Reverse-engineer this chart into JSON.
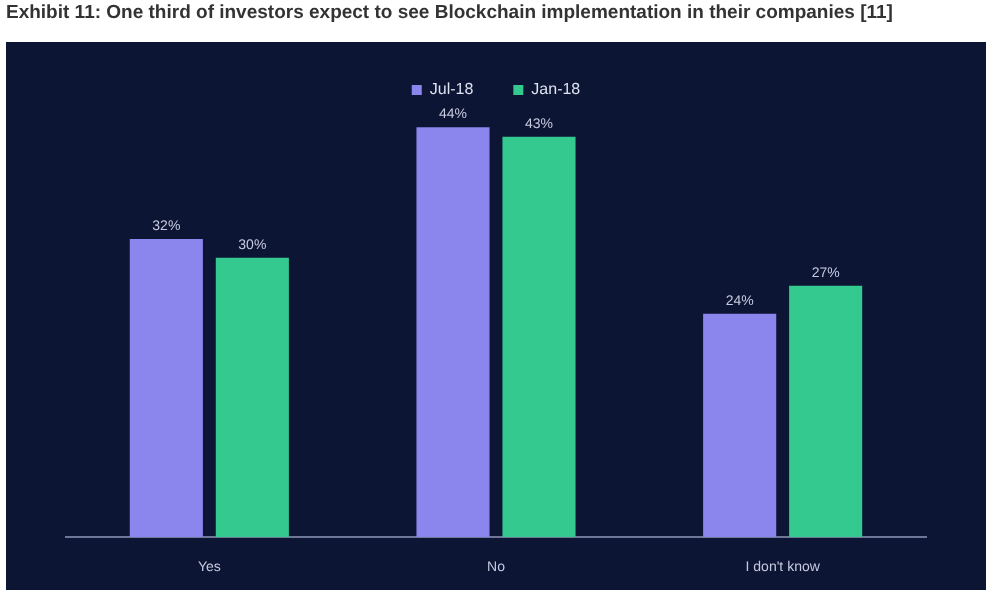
{
  "chart_data": {
    "type": "bar",
    "title": "Exhibit 11: One third of investors expect to see Blockchain implementation in their companies [11]",
    "categories": [
      "Yes",
      "No",
      "I don't know"
    ],
    "series": [
      {
        "name": "Jul-18",
        "color": "#8a86ee",
        "values": [
          32,
          44,
          24
        ],
        "value_labels": [
          "32%",
          "44%",
          "24%"
        ]
      },
      {
        "name": "Jan-18",
        "color": "#34c98f",
        "values": [
          30,
          43,
          27
        ],
        "value_labels": [
          "30%",
          "43%",
          "27%"
        ]
      }
    ],
    "legend": "top",
    "grid": false
  }
}
